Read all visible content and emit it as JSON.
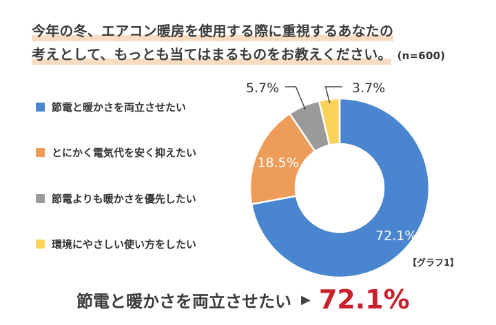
{
  "title": {
    "line1": "今年の冬、エアコン暖房を使用する際に重視するあなたの",
    "line2": "考えとして、もっとも当てはまるものをお教えください。",
    "sample_size": "(n=600)"
  },
  "chart_data": {
    "type": "pie",
    "donut": true,
    "categories": [
      "節電と暖かさを両立させたい",
      "とにかく電気代を安く抑えたい",
      "節電よりも暖かさを優先したい",
      "環境にやさしい使い方をしたい"
    ],
    "values": [
      72.1,
      18.5,
      5.7,
      3.7
    ],
    "labels": [
      "72.1%",
      "18.5%",
      "5.7%",
      "3.7%"
    ],
    "colors": [
      "#4a86cf",
      "#ee9c5a",
      "#9a9a9a",
      "#fad35b"
    ],
    "legend_position": "left",
    "graph_tag": "【グラフ1】"
  },
  "summary": {
    "label": "節電と暖かさを両立させたい",
    "arrow": "▶",
    "value": "72.1%"
  }
}
